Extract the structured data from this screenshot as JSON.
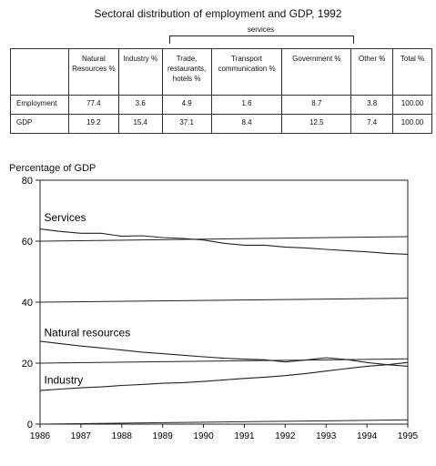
{
  "title": "Sectoral distribution of employment and GDP, 1992",
  "services_label": "services",
  "table": {
    "headers": [
      "",
      "Natural Resources %",
      "Industry %",
      "Trade, restaurants, hotels %",
      "Transport communication %",
      "Government %",
      "Other %",
      "Total %"
    ],
    "rows": [
      {
        "label": "Employment",
        "values": [
          "77.4",
          "3.6",
          "4.9",
          "1.6",
          "8.7",
          "3.8",
          "100.00"
        ]
      },
      {
        "label": "GDP",
        "values": [
          "19.2",
          "15.4",
          "37.1",
          "8.4",
          "12.5",
          "7.4",
          "100.00"
        ]
      }
    ]
  },
  "chart_data": {
    "type": "line",
    "title": "",
    "ylabel": "Percentage of GDP",
    "xlabel": "",
    "xlim": [
      1986,
      1995
    ],
    "ylim": [
      0,
      80
    ],
    "x_ticks": [
      "1986",
      "1987",
      "1988",
      "1989",
      "1990",
      "1991",
      "1992",
      "1993",
      "1994",
      "1995"
    ],
    "y_ticks": [
      "0",
      "20",
      "40",
      "60",
      "80"
    ],
    "grid": false,
    "legend": "none",
    "series": [
      {
        "name": "Services",
        "label_position": [
          1986.1,
          66.5
        ],
        "x": [
          1986,
          1986.5,
          1987,
          1987.5,
          1988,
          1988.5,
          1989,
          1989.5,
          1990,
          1990.5,
          1991,
          1991.5,
          1992,
          1992.5,
          1993,
          1993.5,
          1994,
          1994.5,
          1995
        ],
        "y": [
          64,
          63.2,
          62.6,
          62.6,
          61.6,
          61.8,
          61.2,
          60.9,
          60.4,
          59.3,
          58.7,
          58.7,
          58.1,
          57.8,
          57.3,
          56.9,
          56.5,
          56.0,
          55.7
        ]
      },
      {
        "name": "Natural resources",
        "label_position": [
          1986.1,
          28.8
        ],
        "x": [
          1986,
          1986.5,
          1987,
          1987.5,
          1988,
          1988.5,
          1989,
          1989.5,
          1990,
          1990.5,
          1991,
          1991.5,
          1992,
          1992.5,
          1993,
          1993.5,
          1994,
          1994.5,
          1995
        ],
        "y": [
          27.2,
          26.4,
          25.6,
          25.0,
          24.3,
          23.6,
          23.1,
          22.6,
          22.1,
          21.6,
          21.3,
          21.1,
          20.4,
          21.0,
          21.8,
          21.2,
          20.2,
          19.5,
          19.0
        ]
      },
      {
        "name": "Industry",
        "label_position": [
          1986.1,
          13.3
        ],
        "x": [
          1986,
          1986.5,
          1987,
          1987.5,
          1988,
          1988.5,
          1989,
          1989.5,
          1990,
          1990.5,
          1991,
          1991.5,
          1992,
          1992.5,
          1993,
          1993.5,
          1994,
          1994.5,
          1995
        ],
        "y": [
          11.0,
          11.5,
          11.9,
          12.2,
          12.7,
          13.0,
          13.4,
          13.6,
          14.0,
          14.5,
          15.0,
          15.4,
          15.9,
          16.6,
          17.4,
          18.2,
          19.0,
          19.5,
          20.2
        ]
      }
    ],
    "reference_lines": [
      {
        "x": [
          1986,
          1995
        ],
        "y": [
          60,
          61.5
        ]
      },
      {
        "x": [
          1986,
          1995
        ],
        "y": [
          40,
          41.3
        ]
      },
      {
        "x": [
          1986,
          1995
        ],
        "y": [
          20,
          21.4
        ]
      },
      {
        "x": [
          1986,
          1995
        ],
        "y": [
          0,
          1.4
        ]
      }
    ]
  }
}
